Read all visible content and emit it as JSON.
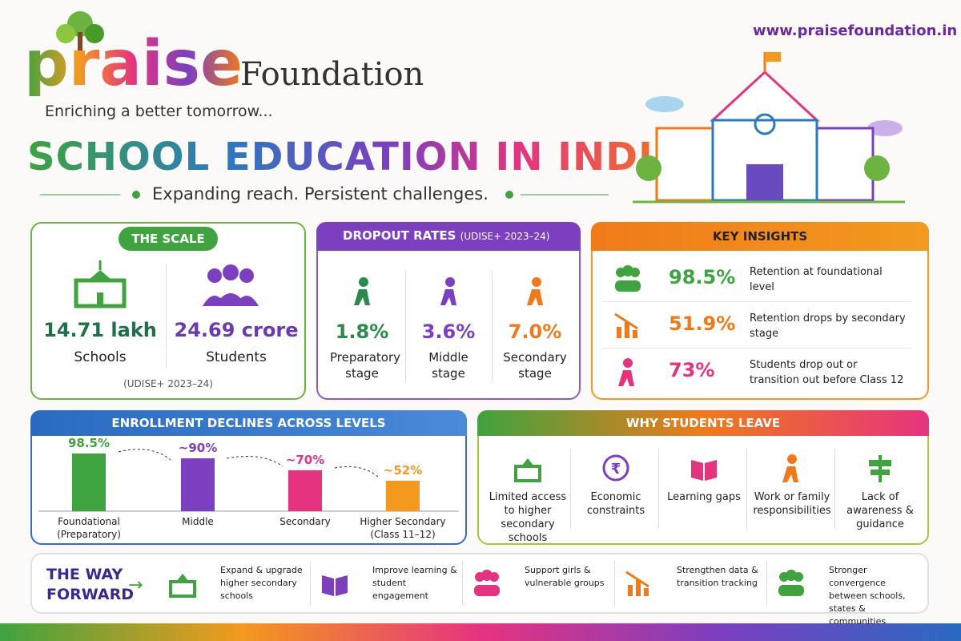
{
  "header": {
    "logo": "praise",
    "org": "Foundation",
    "tagline": "Enriching a better tomorrow...",
    "url": "www.praisefoundation.in",
    "title": "SCHOOL EDUCATION IN INDIA",
    "subtitle": "Expanding reach. Persistent challenges."
  },
  "scale": {
    "title": "THE SCALE",
    "items": [
      {
        "value": "14.71 lakh",
        "label": "Schools"
      },
      {
        "value": "24.69 crore",
        "label": "Students"
      }
    ],
    "source": "(UDISE+ 2023–24)"
  },
  "dropout": {
    "title": "DROPOUT RATES",
    "source": "(UDISE+ 2023–24)",
    "items": [
      {
        "value": "1.8%",
        "label": "Preparatory stage"
      },
      {
        "value": "3.6%",
        "label": "Middle stage"
      },
      {
        "value": "7.0%",
        "label": "Secondary stage"
      }
    ]
  },
  "insights": {
    "title": "KEY INSIGHTS",
    "items": [
      {
        "value": "98.5%",
        "text": "Retention at foundational level"
      },
      {
        "value": "51.9%",
        "text": "Retention drops by secondary stage"
      },
      {
        "value": "73%",
        "text": "Students drop out or transition out before Class 12"
      }
    ]
  },
  "chart_data": {
    "type": "bar",
    "title": "ENROLLMENT DECLINES ACROSS LEVELS",
    "categories": [
      "Foundational (Preparatory)",
      "Middle",
      "Secondary",
      "Higher Secondary (Class 11–12)"
    ],
    "values": [
      98.5,
      90,
      70,
      52
    ],
    "value_labels": [
      "98.5%",
      "~90%",
      "~70%",
      "~52%"
    ],
    "colors": [
      "#3fa33f",
      "#7b3fc0",
      "#e6337f",
      "#f39a1e"
    ]
  },
  "why": {
    "title": "WHY STUDENTS LEAVE",
    "items": [
      "Limited access to higher secondary schools",
      "Economic constraints",
      "Learning gaps",
      "Work or family responsibilities",
      "Lack of awareness & guidance"
    ]
  },
  "forward": {
    "title": "THE WAY FORWARD",
    "items": [
      "Expand & upgrade higher secondary schools",
      "Improve learning & student engagement",
      "Support girls & vulnerable groups",
      "Strengthen data & transition tracking",
      "Stronger convergence between schools, states & communities"
    ]
  }
}
